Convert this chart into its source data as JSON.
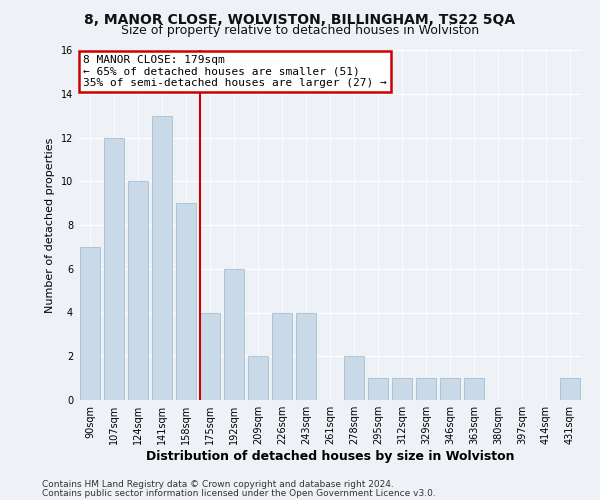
{
  "title": "8, MANOR CLOSE, WOLVISTON, BILLINGHAM, TS22 5QA",
  "subtitle": "Size of property relative to detached houses in Wolviston",
  "xlabel_bottom": "Distribution of detached houses by size in Wolviston",
  "ylabel": "Number of detached properties",
  "categories": [
    "90sqm",
    "107sqm",
    "124sqm",
    "141sqm",
    "158sqm",
    "175sqm",
    "192sqm",
    "209sqm",
    "226sqm",
    "243sqm",
    "261sqm",
    "278sqm",
    "295sqm",
    "312sqm",
    "329sqm",
    "346sqm",
    "363sqm",
    "380sqm",
    "397sqm",
    "414sqm",
    "431sqm"
  ],
  "values": [
    7,
    12,
    10,
    13,
    9,
    4,
    6,
    2,
    4,
    4,
    0,
    2,
    1,
    1,
    1,
    1,
    1,
    0,
    0,
    0,
    1
  ],
  "bar_color": "#c9d9e8",
  "bar_edgecolor": "#9ab5cc",
  "annotation_line1": "8 MANOR CLOSE: 179sqm",
  "annotation_line2": "← 65% of detached houses are smaller (51)",
  "annotation_line3": "35% of semi-detached houses are larger (27) →",
  "annotation_box_color": "#ffffff",
  "annotation_box_edgecolor": "#cc0000",
  "red_line_color": "#cc0000",
  "ylim": [
    0,
    16
  ],
  "yticks": [
    0,
    2,
    4,
    6,
    8,
    10,
    12,
    14,
    16
  ],
  "footer1": "Contains HM Land Registry data © Crown copyright and database right 2024.",
  "footer2": "Contains public sector information licensed under the Open Government Licence v3.0.",
  "background_color": "#eef2f7",
  "plot_background": "#eef2f7",
  "title_fontsize": 10,
  "subtitle_fontsize": 9,
  "tick_fontsize": 7,
  "ylabel_fontsize": 8,
  "xlabel_fontsize": 9,
  "footer_fontsize": 6.5,
  "annot_fontsize": 8
}
